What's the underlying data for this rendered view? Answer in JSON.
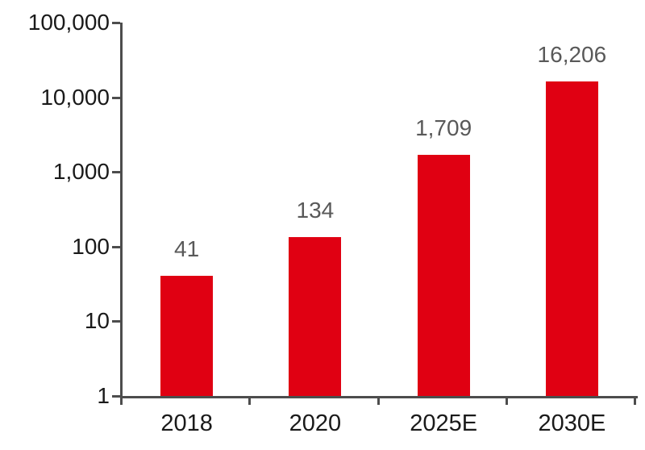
{
  "chart_data": {
    "type": "bar",
    "categories": [
      "2018",
      "2020",
      "2025E",
      "2030E"
    ],
    "values": [
      41,
      134,
      1709,
      16206
    ],
    "value_labels": [
      "41",
      "134",
      "1,709",
      "16,206"
    ],
    "y_ticks": [
      1,
      10,
      100,
      1000,
      10000,
      100000
    ],
    "y_tick_labels": [
      "1",
      "10",
      "100",
      "1,000",
      "10,000",
      "100,000"
    ],
    "y_scale": "log10",
    "ylim": [
      1,
      100000
    ],
    "title": "",
    "xlabel": "",
    "ylabel": "",
    "grid": false,
    "legend": false,
    "colors": {
      "bar": "#e00012",
      "value_label": "#595959",
      "axis_line": "#4d4d4d",
      "tick_label": "#1a1a1a",
      "background": "#ffffff"
    }
  }
}
